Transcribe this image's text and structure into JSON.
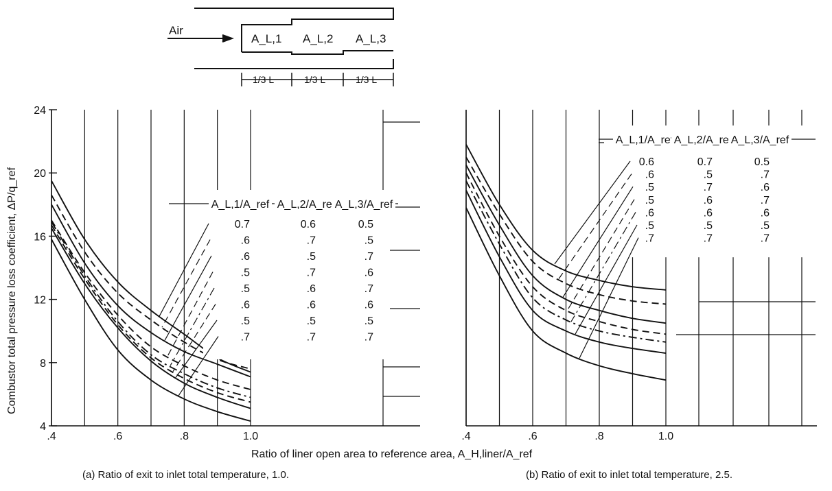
{
  "diagram": {
    "air_label": "Air",
    "zone_labels": [
      "A_L,1",
      "A_L,2",
      "A_L,3"
    ],
    "length_labels": [
      "1/3 L",
      "1/3 L",
      "1/3 L"
    ]
  },
  "xlabel": "Ratio of liner open area to reference area, A_H,liner/A_ref",
  "ylabel": "Combustor total pressure loss coefficient, ΔP/q_ref",
  "captions": {
    "a": "(a) Ratio of exit to inlet total temperature, 1.0.",
    "b": "(b) Ratio of exit to inlet total temperature, 2.5."
  },
  "chart_data": [
    {
      "type": "line",
      "title": "(a) Ratio of exit to inlet total temperature, 1.0.",
      "xlabel": "Ratio of liner open area to reference area, A_H,liner/A_ref",
      "ylabel": "Combustor total pressure loss coefficient, ΔP/q_ref",
      "xlim": [
        0.4,
        1.0
      ],
      "ylim": [
        4,
        24
      ],
      "x_ticks": [
        ".4",
        ".6",
        ".8",
        "1.0"
      ],
      "y_ticks": [
        "4",
        "8",
        "12",
        "16",
        "20",
        "24"
      ],
      "grid": "vertical",
      "table_headers": [
        "A_L,1/A_ref",
        "A_L,2/A_ref",
        "A_L,3/A_ref"
      ],
      "x": [
        0.4,
        0.5,
        0.6,
        0.7,
        0.8,
        0.9,
        1.0
      ],
      "series": [
        {
          "label": [
            "0.7",
            "0.6",
            "0.5"
          ],
          "style": "solid",
          "values": [
            19.5,
            15.8,
            13.1,
            11.3,
            9.8,
            8.3,
            7.4
          ]
        },
        {
          "label": [
            ".6",
            ".7",
            ".5"
          ],
          "style": "dashed",
          "values": [
            18.6,
            15.0,
            12.4,
            10.7,
            9.3,
            8.2,
            7.6
          ]
        },
        {
          "label": [
            ".6",
            ".5",
            ".7"
          ],
          "style": "solid",
          "values": [
            18.0,
            14.3,
            11.6,
            9.9,
            8.7,
            7.9,
            7.1
          ]
        },
        {
          "label": [
            ".5",
            ".7",
            ".6"
          ],
          "style": "dashed",
          "values": [
            17.0,
            13.7,
            11.0,
            9.0,
            7.8,
            6.9,
            6.3
          ]
        },
        {
          "label": [
            ".5",
            ".6",
            ".7"
          ],
          "style": "dashdot",
          "values": [
            16.9,
            13.5,
            10.6,
            8.5,
            7.3,
            6.4,
            5.8
          ]
        },
        {
          "label": [
            ".6",
            ".6",
            ".6"
          ],
          "style": "dashed",
          "values": [
            16.7,
            13.3,
            10.4,
            8.3,
            7.0,
            6.1,
            5.5
          ]
        },
        {
          "label": [
            ".5",
            ".5",
            ".5"
          ],
          "style": "solid",
          "values": [
            16.5,
            13.0,
            10.2,
            8.1,
            6.7,
            5.8,
            5.1
          ]
        },
        {
          "label": [
            ".7",
            ".7",
            ".7"
          ],
          "style": "solid",
          "values": [
            15.8,
            12.0,
            8.8,
            6.9,
            5.7,
            4.9,
            4.3
          ]
        }
      ]
    },
    {
      "type": "line",
      "title": "(b) Ratio of exit to inlet total temperature, 2.5.",
      "xlabel": "Ratio of liner open area to reference area, A_H,liner/A_ref",
      "ylabel": "Combustor total pressure loss coefficient, ΔP/q_ref",
      "xlim": [
        0.4,
        1.0
      ],
      "ylim": [
        4,
        24
      ],
      "x_ticks": [
        ".4",
        ".6",
        ".8",
        "1.0"
      ],
      "grid": "vertical",
      "table_headers": [
        "A_L,1/A_ref",
        "A_L,2/A_ref",
        "A_L,3/A_ref"
      ],
      "x": [
        0.4,
        0.5,
        0.6,
        0.7,
        0.8,
        0.9,
        1.0
      ],
      "series": [
        {
          "label": [
            "0.6",
            "0.7",
            "0.5"
          ],
          "style": "solid",
          "values": [
            21.8,
            18.0,
            15.1,
            13.8,
            13.2,
            12.8,
            12.6
          ]
        },
        {
          "label": [
            ".6",
            ".5",
            ".7"
          ],
          "style": "dashed",
          "values": [
            21.0,
            17.4,
            14.4,
            13.0,
            12.3,
            11.9,
            11.7
          ]
        },
        {
          "label": [
            ".5",
            ".7",
            ".6"
          ],
          "style": "solid",
          "values": [
            20.5,
            16.7,
            13.5,
            12.0,
            11.3,
            10.8,
            10.5
          ]
        },
        {
          "label": [
            ".5",
            ".6",
            ".7"
          ],
          "style": "dashed",
          "values": [
            20.0,
            16.0,
            12.8,
            11.3,
            10.6,
            10.1,
            9.8
          ]
        },
        {
          "label": [
            ".6",
            ".6",
            ".6"
          ],
          "style": "dashdot",
          "values": [
            19.5,
            15.5,
            12.1,
            10.7,
            10.0,
            9.6,
            9.3
          ]
        },
        {
          "label": [
            ".5",
            ".5",
            ".5"
          ],
          "style": "solid",
          "values": [
            18.9,
            14.7,
            11.3,
            10.0,
            9.3,
            8.9,
            8.6
          ]
        },
        {
          "label": [
            ".7",
            ".7",
            ".7"
          ],
          "style": "solid",
          "values": [
            17.8,
            13.5,
            10.0,
            8.6,
            7.8,
            7.3,
            6.9
          ]
        }
      ]
    }
  ]
}
